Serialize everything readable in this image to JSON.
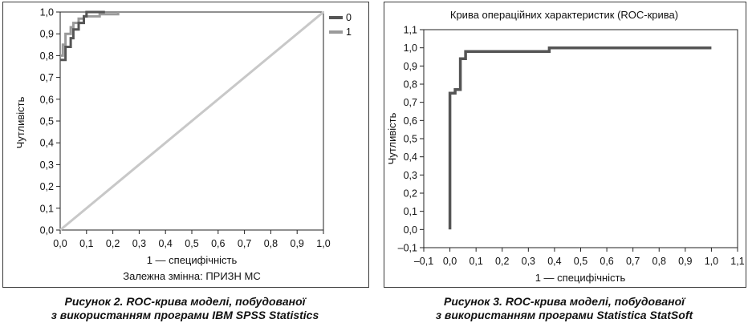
{
  "chart_data": [
    {
      "type": "line",
      "xlabel": "1 — специфічність",
      "ylabel": "Чутливість",
      "subtitle": "Залежна змінна: ПРИЗН МС",
      "xlim": [
        0,
        1
      ],
      "ylim": [
        0,
        1
      ],
      "x_ticks": [
        "0,0",
        "0,1",
        "0,2",
        "0,3",
        "0,4",
        "0,5",
        "0,6",
        "0,7",
        "0,8",
        "0,9",
        "1,0"
      ],
      "y_ticks": [
        "0,0",
        "0,1",
        "0,2",
        "0,3",
        "0,4",
        "0,5",
        "0,6",
        "0,7",
        "0,8",
        "0,9",
        "1,0"
      ],
      "legend": "top-right",
      "grid": false,
      "series": [
        {
          "name": "0",
          "color": "#555555",
          "points": [
            [
              0,
              0.78
            ],
            [
              0.02,
              0.78
            ],
            [
              0.02,
              0.84
            ],
            [
              0.04,
              0.84
            ],
            [
              0.04,
              0.88
            ],
            [
              0.05,
              0.88
            ],
            [
              0.05,
              0.92
            ],
            [
              0.07,
              0.92
            ],
            [
              0.07,
              0.95
            ],
            [
              0.09,
              0.95
            ],
            [
              0.09,
              0.98
            ],
            [
              0.1,
              0.98
            ],
            [
              0.1,
              1.0
            ],
            [
              0.17,
              1.0
            ]
          ]
        },
        {
          "name": "1",
          "color": "#9a9a9a",
          "points": [
            [
              0,
              0.8
            ],
            [
              0.01,
              0.8
            ],
            [
              0.01,
              0.85
            ],
            [
              0.02,
              0.85
            ],
            [
              0.02,
              0.9
            ],
            [
              0.04,
              0.9
            ],
            [
              0.04,
              0.93
            ],
            [
              0.05,
              0.93
            ],
            [
              0.05,
              0.95
            ],
            [
              0.07,
              0.95
            ],
            [
              0.07,
              0.97
            ],
            [
              0.09,
              0.97
            ],
            [
              0.09,
              0.98
            ],
            [
              0.15,
              0.98
            ],
            [
              0.15,
              0.99
            ],
            [
              0.22,
              0.99
            ],
            [
              0.22,
              1.0
            ]
          ]
        }
      ],
      "reference_line": {
        "color": "#c8c8c8",
        "points": [
          [
            0,
            0
          ],
          [
            1,
            1
          ]
        ]
      }
    },
    {
      "type": "line",
      "title": "Крива операційних характеристик (ROC-крива)",
      "xlabel": "1 — специфічність",
      "ylabel": "Чутливість",
      "xlim": [
        -0.1,
        1.1
      ],
      "ylim": [
        -0.1,
        1.1
      ],
      "x_ticks": [
        "–0,1",
        "0,0",
        "0,1",
        "0,2",
        "0,3",
        "0,4",
        "0,5",
        "0,6",
        "0,7",
        "0,8",
        "0,9",
        "1,0",
        "1,1"
      ],
      "y_ticks": [
        "–0,1",
        "0,0",
        "0,1",
        "0,2",
        "0,3",
        "0,4",
        "0,5",
        "0,6",
        "0,7",
        "0,8",
        "0,9",
        "1,0",
        "1,1"
      ],
      "grid": false,
      "series": [
        {
          "color": "#555555",
          "points": [
            [
              0,
              0
            ],
            [
              0,
              0.75
            ],
            [
              0.02,
              0.75
            ],
            [
              0.02,
              0.77
            ],
            [
              0.04,
              0.77
            ],
            [
              0.04,
              0.94
            ],
            [
              0.06,
              0.94
            ],
            [
              0.06,
              0.98
            ],
            [
              0.38,
              0.98
            ],
            [
              0.38,
              1.0
            ],
            [
              1.0,
              1.0
            ]
          ]
        }
      ]
    }
  ],
  "captions": {
    "left_line1": "Рисунок 2.  ROC-крива моделі, побудованої",
    "left_line2": "з використанням програми IBM SPSS Statistics",
    "right_line1": "Рисунок 3.  ROC-крива моделі, побудованої",
    "right_line2": "з використанням програми Statistica StatSoft"
  }
}
